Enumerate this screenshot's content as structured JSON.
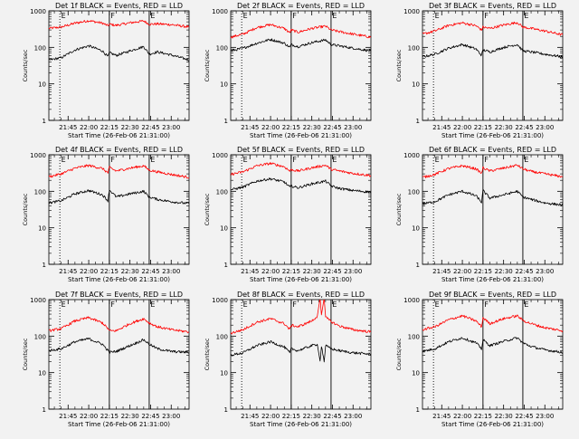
{
  "figure": {
    "background": "#f2f2f2",
    "axis_color": "#000000",
    "events_color": "#000000",
    "lld_color": "#ff0000",
    "marker_labels": [
      "E",
      "F",
      "E"
    ]
  },
  "chart_data": [
    {
      "type": "line",
      "title": "Det 1f BLACK = Events, RED = LLD",
      "xlabel": "Start Time (26-Feb-06 21:31:00)",
      "ylabel": "Counts/sec",
      "y_scale": "log",
      "ylim": [
        1,
        1000
      ],
      "yticks": [
        1,
        10,
        100,
        1000
      ],
      "ytick_labels": [
        "1",
        "10",
        "100",
        "1000"
      ],
      "xlim": [
        "21:31",
        "23:13"
      ],
      "xticks": [
        "21:45",
        "22:00",
        "22:15",
        "22:30",
        "22:45",
        "23:00"
      ],
      "grid": false,
      "legend": "none",
      "markers": [
        {
          "time": "21:39",
          "label": "E",
          "style": "dotted"
        },
        {
          "time": "22:15",
          "label": "F",
          "style": "solid"
        },
        {
          "time": "22:44",
          "label": "E",
          "style": "solid"
        }
      ],
      "x": [
        "21:31",
        "21:40",
        "21:50",
        "22:00",
        "22:10",
        "22:14",
        "22:15",
        "22:20",
        "22:30",
        "22:40",
        "22:44",
        "22:50",
        "23:00",
        "23:13"
      ],
      "series": [
        {
          "color": "#ff0000",
          "values": [
            330,
            360,
            460,
            540,
            460,
            390,
            430,
            400,
            470,
            530,
            430,
            440,
            420,
            360
          ]
        },
        {
          "color": "#000000",
          "values": [
            45,
            52,
            85,
            110,
            80,
            55,
            72,
            60,
            80,
            105,
            65,
            75,
            62,
            45
          ]
        }
      ]
    },
    {
      "type": "line",
      "title": "Det 2f BLACK = Events, RED = LLD",
      "xlabel": "Start Time (26-Feb-06 21:31:00)",
      "ylabel": "Counts/sec",
      "y_scale": "log",
      "ylim": [
        1,
        1000
      ],
      "yticks": [
        1,
        10,
        100,
        1000
      ],
      "ytick_labels": [
        "1",
        "10",
        "100",
        "1000"
      ],
      "xlim": [
        "21:31",
        "23:13"
      ],
      "xticks": [
        "21:45",
        "22:00",
        "22:15",
        "22:30",
        "22:45",
        "23:00"
      ],
      "grid": false,
      "legend": "none",
      "markers": [
        {
          "time": "21:39",
          "label": "E",
          "style": "dotted"
        },
        {
          "time": "22:15",
          "label": "F",
          "style": "solid"
        },
        {
          "time": "22:44",
          "label": "E",
          "style": "solid"
        }
      ],
      "x": [
        "21:31",
        "21:40",
        "21:50",
        "22:00",
        "22:10",
        "22:14",
        "22:15",
        "22:20",
        "22:30",
        "22:40",
        "22:44",
        "22:50",
        "23:00",
        "23:13"
      ],
      "series": [
        {
          "color": "#ff0000",
          "values": [
            190,
            230,
            350,
            420,
            330,
            250,
            300,
            260,
            330,
            380,
            300,
            270,
            230,
            190
          ]
        },
        {
          "color": "#000000",
          "values": [
            80,
            95,
            130,
            165,
            130,
            100,
            120,
            105,
            135,
            160,
            120,
            110,
            95,
            80
          ]
        }
      ]
    },
    {
      "type": "line",
      "title": "Det 3f BLACK = Events, RED = LLD",
      "xlabel": "Start Time (26-Feb-06 21:31:00)",
      "ylabel": "Counts/sec",
      "y_scale": "log",
      "ylim": [
        1,
        1000
      ],
      "yticks": [
        1,
        10,
        100,
        1000
      ],
      "ytick_labels": [
        "1",
        "10",
        "100",
        "1000"
      ],
      "xlim": [
        "21:31",
        "23:13"
      ],
      "xticks": [
        "21:45",
        "22:00",
        "22:15",
        "22:30",
        "22:45",
        "23:00"
      ],
      "grid": false,
      "legend": "none",
      "markers": [
        {
          "time": "21:39",
          "label": "E",
          "style": "dotted"
        },
        {
          "time": "22:15",
          "label": "F",
          "style": "solid"
        },
        {
          "time": "22:44",
          "label": "E",
          "style": "solid"
        }
      ],
      "x": [
        "21:31",
        "21:40",
        "21:50",
        "22:00",
        "22:10",
        "22:14",
        "22:15",
        "22:20",
        "22:30",
        "22:40",
        "22:44",
        "22:50",
        "23:00",
        "23:13"
      ],
      "series": [
        {
          "color": "#ff0000",
          "values": [
            230,
            280,
            400,
            470,
            390,
            300,
            360,
            330,
            410,
            480,
            360,
            330,
            280,
            220
          ]
        },
        {
          "color": "#000000",
          "values": [
            55,
            65,
            95,
            120,
            90,
            60,
            85,
            75,
            100,
            120,
            80,
            75,
            65,
            55
          ]
        }
      ]
    },
    {
      "type": "line",
      "title": "Det 4f BLACK = Events, RED = LLD",
      "xlabel": "Start Time (26-Feb-06 21:31:00)",
      "ylabel": "Counts/sec",
      "y_scale": "log",
      "ylim": [
        1,
        1000
      ],
      "yticks": [
        1,
        10,
        100,
        1000
      ],
      "ytick_labels": [
        "1",
        "10",
        "100",
        "1000"
      ],
      "xlim": [
        "21:31",
        "23:13"
      ],
      "xticks": [
        "21:45",
        "22:00",
        "22:15",
        "22:30",
        "22:45",
        "23:00"
      ],
      "grid": false,
      "legend": "none",
      "markers": [
        {
          "time": "21:39",
          "label": "E",
          "style": "dotted"
        },
        {
          "time": "22:15",
          "label": "F",
          "style": "solid"
        },
        {
          "time": "22:44",
          "label": "E",
          "style": "solid"
        }
      ],
      "x": [
        "21:31",
        "21:40",
        "21:50",
        "22:00",
        "22:10",
        "22:14",
        "22:15",
        "22:20",
        "22:30",
        "22:40",
        "22:44",
        "22:50",
        "23:00",
        "23:13"
      ],
      "series": [
        {
          "color": "#ff0000",
          "values": [
            250,
            300,
            430,
            510,
            420,
            320,
            450,
            360,
            430,
            500,
            380,
            340,
            290,
            240
          ]
        },
        {
          "color": "#000000",
          "values": [
            48,
            55,
            85,
            105,
            80,
            55,
            110,
            70,
            85,
            100,
            70,
            60,
            52,
            46
          ]
        }
      ]
    },
    {
      "type": "line",
      "title": "Det 5f BLACK = Events, RED = LLD",
      "xlabel": "Start Time (26-Feb-06 21:31:00)",
      "ylabel": "Counts/sec",
      "y_scale": "log",
      "ylim": [
        1,
        1000
      ],
      "yticks": [
        1,
        10,
        100,
        1000
      ],
      "ytick_labels": [
        "1",
        "10",
        "100",
        "1000"
      ],
      "xlim": [
        "21:31",
        "23:13"
      ],
      "xticks": [
        "21:45",
        "22:00",
        "22:15",
        "22:30",
        "22:45",
        "23:00"
      ],
      "grid": false,
      "legend": "none",
      "markers": [
        {
          "time": "21:39",
          "label": "E",
          "style": "dotted"
        },
        {
          "time": "22:15",
          "label": "F",
          "style": "solid"
        },
        {
          "time": "22:44",
          "label": "E",
          "style": "solid"
        }
      ],
      "x": [
        "21:31",
        "21:40",
        "21:50",
        "22:00",
        "22:10",
        "22:14",
        "22:15",
        "22:20",
        "22:30",
        "22:40",
        "22:44",
        "22:50",
        "23:00",
        "23:13"
      ],
      "series": [
        {
          "color": "#ff0000",
          "values": [
            290,
            340,
            500,
            580,
            470,
            360,
            390,
            360,
            440,
            520,
            400,
            360,
            310,
            270
          ]
        },
        {
          "color": "#000000",
          "values": [
            110,
            130,
            190,
            220,
            180,
            130,
            140,
            125,
            160,
            190,
            140,
            120,
            105,
            95
          ]
        }
      ]
    },
    {
      "type": "line",
      "title": "Det 6f BLACK = Events, RED = LLD",
      "xlabel": "Start Time (26-Feb-06 21:31:00)",
      "ylabel": "Counts/sec",
      "y_scale": "log",
      "ylim": [
        1,
        1000
      ],
      "yticks": [
        1,
        10,
        100,
        1000
      ],
      "ytick_labels": [
        "1",
        "10",
        "100",
        "1000"
      ],
      "xlim": [
        "21:31",
        "23:13"
      ],
      "xticks": [
        "21:45",
        "22:00",
        "22:15",
        "22:30",
        "22:45",
        "23:00"
      ],
      "grid": false,
      "legend": "none",
      "markers": [
        {
          "time": "21:39",
          "label": "E",
          "style": "dotted"
        },
        {
          "time": "22:15",
          "label": "F",
          "style": "solid"
        },
        {
          "time": "22:44",
          "label": "E",
          "style": "solid"
        }
      ],
      "x": [
        "21:31",
        "21:40",
        "21:50",
        "22:00",
        "22:10",
        "22:14",
        "22:15",
        "22:20",
        "22:30",
        "22:40",
        "22:44",
        "22:50",
        "23:00",
        "23:13"
      ],
      "series": [
        {
          "color": "#ff0000",
          "values": [
            240,
            290,
            420,
            500,
            410,
            310,
            440,
            360,
            430,
            520,
            410,
            350,
            300,
            250
          ]
        },
        {
          "color": "#000000",
          "values": [
            45,
            52,
            80,
            100,
            75,
            50,
            105,
            65,
            80,
            100,
            70,
            60,
            48,
            42
          ]
        }
      ]
    },
    {
      "type": "line",
      "title": "Det 7f BLACK = Events, RED = LLD",
      "xlabel": "Start Time (26-Feb-06 21:31:00)",
      "ylabel": "Counts/sec",
      "y_scale": "log",
      "ylim": [
        1,
        1000
      ],
      "yticks": [
        1,
        10,
        100,
        1000
      ],
      "ytick_labels": [
        "1",
        "10",
        "100",
        "1000"
      ],
      "xlim": [
        "21:31",
        "23:13"
      ],
      "xticks": [
        "21:45",
        "22:00",
        "22:15",
        "22:30",
        "22:45",
        "23:00"
      ],
      "grid": false,
      "legend": "none",
      "markers": [
        {
          "time": "21:39",
          "label": "E",
          "style": "dotted"
        },
        {
          "time": "22:15",
          "label": "F",
          "style": "solid"
        },
        {
          "time": "22:44",
          "label": "E",
          "style": "solid"
        }
      ],
      "x": [
        "21:31",
        "21:40",
        "21:50",
        "22:00",
        "22:10",
        "22:14",
        "22:15",
        "22:20",
        "22:30",
        "22:40",
        "22:44",
        "22:50",
        "23:00",
        "23:13"
      ],
      "series": [
        {
          "color": "#ff0000",
          "values": [
            140,
            160,
            260,
            320,
            230,
            160,
            140,
            140,
            220,
            300,
            230,
            180,
            150,
            130
          ]
        },
        {
          "color": "#000000",
          "values": [
            40,
            45,
            70,
            85,
            60,
            40,
            36,
            38,
            55,
            80,
            60,
            45,
            38,
            36
          ]
        }
      ]
    },
    {
      "type": "line",
      "title": "Det 8f BLACK = Events, RED = LLD",
      "xlabel": "Start Time (26-Feb-06 21:31:00)",
      "ylabel": "Counts/sec",
      "y_scale": "log",
      "ylim": [
        1,
        1000
      ],
      "yticks": [
        1,
        10,
        100,
        1000
      ],
      "ytick_labels": [
        "1",
        "10",
        "100",
        "1000"
      ],
      "xlim": [
        "21:31",
        "23:13"
      ],
      "xticks": [
        "21:45",
        "22:00",
        "22:15",
        "22:30",
        "22:45",
        "23:00"
      ],
      "grid": false,
      "legend": "none",
      "markers": [
        {
          "time": "21:39",
          "label": "E",
          "style": "dotted"
        },
        {
          "time": "22:15",
          "label": "F",
          "style": "solid"
        },
        {
          "time": "22:44",
          "label": "E",
          "style": "solid"
        }
      ],
      "x": [
        "21:31",
        "21:40",
        "21:50",
        "22:00",
        "22:10",
        "22:14",
        "22:15",
        "22:20",
        "22:30",
        "22:34",
        "22:36",
        "22:37",
        "22:39",
        "22:40",
        "22:44",
        "22:50",
        "23:00",
        "23:13"
      ],
      "series": [
        {
          "color": "#ff0000",
          "values": [
            120,
            150,
            240,
            300,
            220,
            150,
            200,
            180,
            260,
            350,
            1100,
            380,
            1100,
            330,
            250,
            190,
            150,
            130
          ]
        },
        {
          "color": "#000000",
          "values": [
            30,
            35,
            55,
            70,
            50,
            35,
            45,
            40,
            55,
            60,
            20,
            55,
            20,
            55,
            45,
            40,
            35,
            32
          ]
        }
      ]
    },
    {
      "type": "line",
      "title": "Det 9f BLACK = Events, RED = LLD",
      "xlabel": "Start Time (26-Feb-06 21:31:00)",
      "ylabel": "Counts/sec",
      "y_scale": "log",
      "ylim": [
        1,
        1000
      ],
      "yticks": [
        1,
        10,
        100,
        1000
      ],
      "ytick_labels": [
        "1",
        "10",
        "100",
        "1000"
      ],
      "xlim": [
        "21:31",
        "23:13"
      ],
      "xticks": [
        "21:45",
        "22:00",
        "22:15",
        "22:30",
        "22:45",
        "23:00"
      ],
      "grid": false,
      "legend": "none",
      "markers": [
        {
          "time": "21:39",
          "label": "E",
          "style": "dotted"
        },
        {
          "time": "22:15",
          "label": "F",
          "style": "solid"
        },
        {
          "time": "22:44",
          "label": "E",
          "style": "solid"
        }
      ],
      "x": [
        "21:31",
        "21:40",
        "21:50",
        "22:00",
        "22:10",
        "22:14",
        "22:15",
        "22:20",
        "22:30",
        "22:40",
        "22:44",
        "22:50",
        "23:00",
        "23:13"
      ],
      "series": [
        {
          "color": "#ff0000",
          "values": [
            150,
            180,
            280,
            360,
            260,
            180,
            320,
            220,
            300,
            360,
            270,
            220,
            170,
            140
          ]
        },
        {
          "color": "#000000",
          "values": [
            38,
            45,
            70,
            90,
            65,
            45,
            80,
            55,
            72,
            90,
            65,
            52,
            42,
            36
          ]
        }
      ]
    }
  ]
}
